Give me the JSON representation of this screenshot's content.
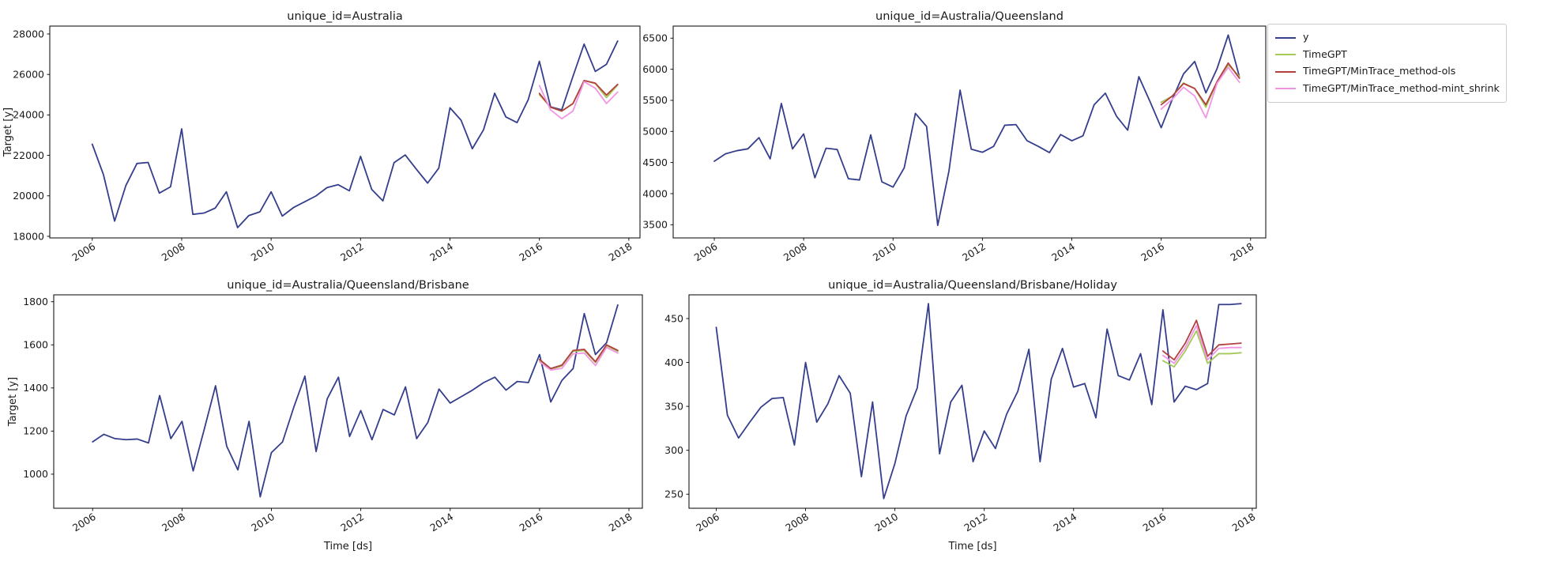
{
  "figure": {
    "background": "#ffffff"
  },
  "colors": {
    "y": "#343E8C",
    "TimeGPT": "#A5C858",
    "TimeGPT/MinTrace_method-ols": "#B2403E",
    "TimeGPT/MinTrace_method-mint_shrink": "#F195E5"
  },
  "legend": {
    "items": [
      {
        "label": "y",
        "color": "#343E8C"
      },
      {
        "label": "TimeGPT",
        "color": "#A5C858"
      },
      {
        "label": "TimeGPT/MinTrace_method-ols",
        "color": "#B2403E"
      },
      {
        "label": "TimeGPT/MinTrace_method-mint_shrink",
        "color": "#F195E5"
      }
    ]
  },
  "chart_data": [
    {
      "type": "line",
      "id": "australia",
      "title": "unique_id=Australia",
      "ylabel": "Target [y]",
      "xlabel": "",
      "x_start": 2006,
      "x_step": 0.25,
      "forecast_x_start": 2016,
      "xticks": [
        2006,
        2008,
        2010,
        2012,
        2014,
        2016,
        2018
      ],
      "yticks": [
        18000,
        20000,
        22000,
        24000,
        26000,
        28000
      ],
      "xlim": [
        2005.05,
        2018.25
      ],
      "ylim": [
        17920,
        28390
      ],
      "grid": false,
      "series": [
        {
          "name": "y",
          "values": [
            22550,
            21050,
            18750,
            20500,
            21600,
            21650,
            20135,
            20445,
            23310,
            19085,
            19150,
            19395,
            20200,
            18430,
            19025,
            19210,
            20200,
            19000,
            19420,
            19705,
            19990,
            20405,
            20550,
            20250,
            21950,
            20320,
            19750,
            21640,
            22020,
            21310,
            20630,
            21370,
            24350,
            23730,
            22330,
            23260,
            25070,
            23900,
            23620,
            24750,
            26650,
            24400,
            24250,
            25900,
            27500,
            26150,
            26500,
            27650
          ]
        },
        {
          "name": "TimeGPT",
          "forecast": true,
          "values": [
            25000,
            24380,
            24190,
            24550,
            25700,
            25550,
            24855,
            25480
          ]
        },
        {
          "name": "TimeGPT/MinTrace_method-ols",
          "forecast": true,
          "values": [
            25060,
            24380,
            24190,
            24560,
            25700,
            25570,
            24980,
            25510
          ]
        },
        {
          "name": "TimeGPT/MinTrace_method-mint_shrink",
          "forecast": true,
          "values": [
            25450,
            24250,
            23810,
            24190,
            25640,
            25320,
            24565,
            25130
          ]
        }
      ]
    },
    {
      "type": "line",
      "id": "queensland",
      "title": "unique_id=Australia/Queensland",
      "ylabel": "",
      "xlabel": "",
      "x_start": 2006,
      "x_step": 0.25,
      "forecast_x_start": 2016,
      "xticks": [
        2006,
        2008,
        2010,
        2012,
        2014,
        2016,
        2018
      ],
      "yticks": [
        3500,
        4000,
        4500,
        5000,
        5500,
        6000,
        6500
      ],
      "xlim": [
        2005.08,
        2018.34
      ],
      "ylim": [
        3288,
        6694
      ],
      "grid": false,
      "series": [
        {
          "name": "y",
          "values": [
            4520,
            4640,
            4690,
            4720,
            4900,
            4560,
            5450,
            4720,
            4960,
            4255,
            4730,
            4710,
            4240,
            4220,
            4945,
            4190,
            4105,
            4415,
            5290,
            5080,
            3490,
            4360,
            5665,
            4715,
            4665,
            4760,
            5100,
            5110,
            4850,
            4760,
            4660,
            4950,
            4850,
            4930,
            5430,
            5615,
            5245,
            5020,
            5880,
            5480,
            5060,
            5520,
            5925,
            6125,
            5620,
            6010,
            6550,
            5880
          ]
        },
        {
          "name": "TimeGPT",
          "forecast": true,
          "values": [
            5470,
            5570,
            5780,
            5690,
            5390,
            5795,
            6070,
            5885
          ]
        },
        {
          "name": "TimeGPT/MinTrace_method-ols",
          "forecast": true,
          "values": [
            5430,
            5570,
            5770,
            5690,
            5430,
            5800,
            6100,
            5855
          ]
        },
        {
          "name": "TimeGPT/MinTrace_method-mint_shrink",
          "forecast": true,
          "values": [
            5360,
            5520,
            5710,
            5570,
            5220,
            5775,
            6030,
            5790
          ]
        }
      ]
    },
    {
      "type": "line",
      "id": "brisbane",
      "title": "unique_id=Australia/Queensland/Brisbane",
      "ylabel": "Target [y]",
      "xlabel": "Time [ds]",
      "x_start": 2006,
      "x_step": 0.25,
      "forecast_x_start": 2016,
      "xticks": [
        2006,
        2008,
        2010,
        2012,
        2014,
        2016,
        2018
      ],
      "yticks": [
        1000,
        1200,
        1400,
        1600,
        1800
      ],
      "xlim": [
        2005.13,
        2018.3
      ],
      "ylim": [
        842,
        1832
      ],
      "grid": false,
      "series": [
        {
          "name": "y",
          "values": [
            1150,
            1185,
            1165,
            1160,
            1163,
            1145,
            1365,
            1165,
            1245,
            1015,
            1210,
            1410,
            1130,
            1020,
            1245,
            895,
            1100,
            1150,
            1310,
            1455,
            1105,
            1350,
            1450,
            1175,
            1295,
            1160,
            1300,
            1275,
            1405,
            1165,
            1240,
            1395,
            1330,
            1360,
            1390,
            1425,
            1450,
            1390,
            1430,
            1425,
            1555,
            1335,
            1435,
            1490,
            1745,
            1555,
            1610,
            1785
          ]
        },
        {
          "name": "TimeGPT",
          "forecast": true,
          "values": [
            1528,
            1486,
            1502,
            1570,
            1574,
            1518,
            1596,
            1570
          ]
        },
        {
          "name": "TimeGPT/MinTrace_method-ols",
          "forecast": true,
          "values": [
            1532,
            1490,
            1506,
            1574,
            1579,
            1522,
            1600,
            1574
          ]
        },
        {
          "name": "TimeGPT/MinTrace_method-mint_shrink",
          "forecast": true,
          "values": [
            1521,
            1483,
            1491,
            1558,
            1562,
            1504,
            1588,
            1562
          ]
        }
      ]
    },
    {
      "type": "line",
      "id": "brisbane-holiday",
      "title": "unique_id=Australia/Queensland/Brisbane/Holiday",
      "ylabel": "",
      "xlabel": "Time [ds]",
      "x_start": 2006,
      "x_step": 0.25,
      "forecast_x_start": 2016,
      "xticks": [
        2006,
        2008,
        2010,
        2012,
        2014,
        2016,
        2018
      ],
      "yticks": [
        250,
        300,
        350,
        400,
        450
      ],
      "xlim": [
        2005.39,
        2018.09
      ],
      "ylim": [
        234,
        477
      ],
      "grid": false,
      "series": [
        {
          "name": "y",
          "values": [
            440,
            340,
            314,
            332,
            349,
            359,
            360,
            306,
            400,
            332,
            353,
            385,
            365,
            270,
            355,
            245,
            285,
            339,
            371,
            467,
            296,
            355,
            374,
            287,
            322,
            302,
            341,
            367,
            415,
            287,
            381,
            416,
            372,
            376,
            337,
            438,
            385,
            380,
            410,
            352,
            460,
            355,
            373,
            369,
            376,
            466,
            466,
            467
          ]
        },
        {
          "name": "TimeGPT",
          "forecast": true,
          "values": [
            402,
            395,
            413,
            436,
            399,
            410,
            410,
            411
          ]
        },
        {
          "name": "TimeGPT/MinTrace_method-ols",
          "forecast": true,
          "values": [
            413,
            403,
            422,
            448,
            407,
            420,
            421,
            422
          ]
        },
        {
          "name": "TimeGPT/MinTrace_method-mint_shrink",
          "forecast": true,
          "values": [
            408,
            399,
            417,
            442,
            403,
            416,
            417,
            417
          ]
        }
      ]
    }
  ]
}
